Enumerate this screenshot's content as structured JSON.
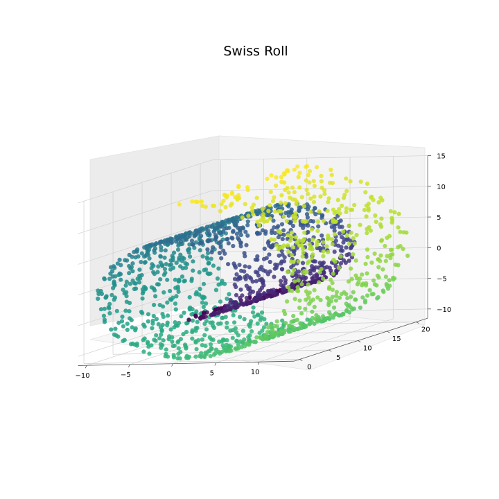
{
  "chart_data": {
    "type": "scatter",
    "title": "Swiss Roll",
    "xlabel": "",
    "ylabel": "",
    "zlabel": "",
    "colormap": "viridis",
    "point_count": 1800,
    "t_range": [
      4.712,
      14.137
    ],
    "height_range": [
      0,
      21
    ],
    "xlim": [
      -11,
      14
    ],
    "ylim": [
      -1,
      22
    ],
    "zlim": [
      -12,
      15
    ],
    "grid": true,
    "x_ticks": [
      "−10",
      "−5",
      "0",
      "5",
      "10"
    ],
    "x_tick_values": [
      -10,
      -5,
      0,
      5,
      10
    ],
    "y_ticks": [
      "0",
      "5",
      "10",
      "15",
      "20"
    ],
    "y_tick_values": [
      0,
      5,
      10,
      15,
      20
    ],
    "z_ticks": [
      "15",
      "10",
      "5",
      "0",
      "−5",
      "−10"
    ],
    "z_tick_values": [
      15,
      10,
      5,
      0,
      -5,
      -10
    ]
  }
}
